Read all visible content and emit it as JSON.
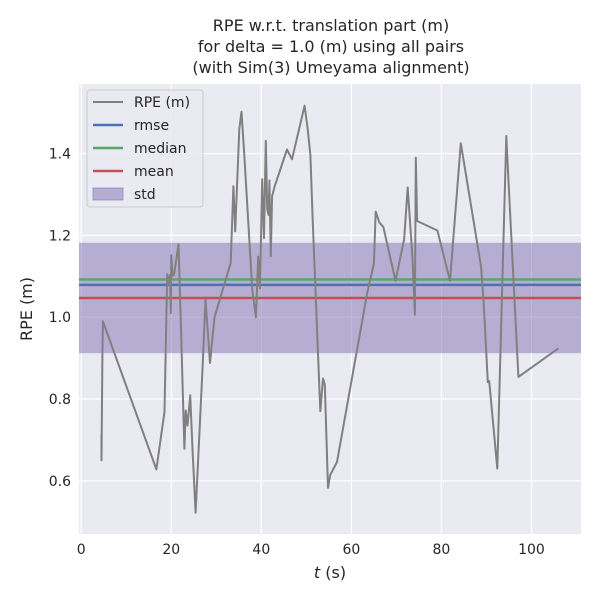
{
  "chart_data": {
    "type": "line",
    "title_lines": [
      "RPE w.r.t. translation part (m)",
      "for delta = 1.0 (m) using all pairs",
      "(with Sim(3) Umeyama alignment)"
    ],
    "xlabel": "t (s)",
    "xlabel_var": "t",
    "xlabel_unit": " (s)",
    "ylabel": "RPE (m)",
    "xlim": [
      -0.5,
      111
    ],
    "ylim": [
      0.47,
      1.57
    ],
    "xticks": [
      0,
      20,
      40,
      60,
      80,
      100
    ],
    "yticks": [
      0.6,
      0.8,
      1.0,
      1.2,
      1.4
    ],
    "ytick_labels": [
      "0.6",
      "0.8",
      "1.0",
      "1.2",
      "1.4"
    ],
    "grid": true,
    "legend_position": "upper-left",
    "legend": [
      {
        "label": "RPE (m)",
        "kind": "line",
        "color": "#808080"
      },
      {
        "label": "rmse",
        "kind": "line",
        "color": "#4c72b0"
      },
      {
        "label": "median",
        "kind": "line",
        "color": "#55a868"
      },
      {
        "label": "mean",
        "kind": "line",
        "color": "#c44e52"
      },
      {
        "label": "std",
        "kind": "patch",
        "color": "#8172b2"
      }
    ],
    "stats": {
      "rmse": 1.079,
      "median": 1.092,
      "mean": 1.047,
      "std_band": [
        0.912,
        1.182
      ]
    },
    "series": [
      {
        "name": "RPE (m)",
        "color": "#808080",
        "x": [
          4.5,
          4.5,
          4.7,
          4.8,
          16.7,
          18.5,
          19.1,
          19.5,
          19.7,
          19.9,
          20.0,
          20.3,
          20.6,
          21.6,
          22.1,
          22.9,
          23.2,
          23.6,
          23.9,
          24.2,
          24.7,
          25.4,
          26.9,
          27.6,
          28.6,
          29.6,
          33.2,
          33.8,
          34.2,
          35.1,
          35.6,
          36.2,
          38.0,
          38.8,
          39.3,
          39.7,
          40.2,
          40.6,
          41.0,
          41.3,
          41.6,
          41.8,
          42.1,
          42.4,
          43.0,
          45.7,
          46.8,
          49.6,
          50.3,
          50.9,
          51.4,
          53.1,
          53.7,
          54.1,
          54.8,
          55.3,
          56.8,
          63.5,
          65.0,
          65.4,
          66.2,
          67.1,
          69.8,
          71.7,
          72.5,
          73.6,
          74.1,
          74.3,
          74.6,
          79.1,
          81.9,
          84.3,
          88.8,
          89.4,
          90.3,
          90.6,
          92.4,
          94.4,
          94.9,
          97.1,
          106.0
        ],
        "y": [
          0.715,
          0.65,
          0.905,
          0.99,
          0.628,
          0.769,
          1.105,
          1.08,
          1.103,
          1.01,
          1.152,
          1.101,
          1.103,
          1.178,
          0.987,
          0.678,
          0.772,
          0.735,
          0.772,
          0.809,
          0.678,
          0.522,
          0.868,
          1.044,
          0.888,
          1.0,
          1.133,
          1.32,
          1.21,
          1.46,
          1.502,
          1.4,
          1.067,
          1.0,
          1.148,
          1.07,
          1.337,
          1.193,
          1.431,
          1.264,
          1.25,
          1.334,
          1.149,
          1.296,
          1.321,
          1.41,
          1.386,
          1.517,
          1.46,
          1.396,
          1.237,
          0.77,
          0.85,
          0.835,
          0.583,
          0.614,
          0.646,
          1.058,
          1.131,
          1.258,
          1.232,
          1.22,
          1.089,
          1.19,
          1.317,
          1.14,
          1.006,
          1.39,
          1.235,
          1.212,
          1.089,
          1.425,
          1.123,
          1.03,
          0.841,
          0.844,
          0.63,
          1.443,
          1.333,
          0.854,
          0.924
        ]
      }
    ]
  }
}
